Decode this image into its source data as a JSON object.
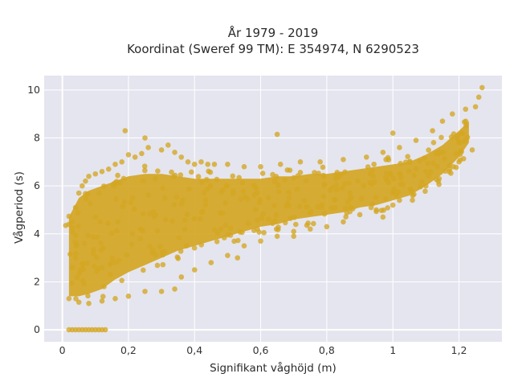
{
  "chart_data": {
    "type": "scatter",
    "title_lines": [
      "År 1979 - 2019",
      "Koordinat (Sweref 99 TM): E 354974, N 6290523"
    ],
    "xlabel": "Signifikant våghöjd (m)",
    "ylabel": "Vågperiod (s)",
    "xlim": [
      -0.055,
      1.33
    ],
    "ylim": [
      -0.5,
      10.6
    ],
    "x_ticks": [
      0,
      0.2,
      0.4,
      0.6,
      0.8,
      1.0,
      1.2
    ],
    "x_tick_labels": [
      "0",
      "0,2",
      "0,4",
      "0,6",
      "0,8",
      "1",
      "1,2"
    ],
    "y_ticks": [
      0,
      2,
      4,
      6,
      8,
      10
    ],
    "y_tick_labels": [
      "0",
      "2",
      "4",
      "6",
      "8",
      "10"
    ],
    "grid": true,
    "legend": "none",
    "colors": {
      "background": "#e5e5ef",
      "grid": "#ffffff",
      "marker": "#d4a623"
    },
    "points": [
      [
        0.02,
        0
      ],
      [
        0.03,
        0
      ],
      [
        0.04,
        0
      ],
      [
        0.05,
        0
      ],
      [
        0.06,
        0
      ],
      [
        0.07,
        0
      ],
      [
        0.08,
        0
      ],
      [
        0.09,
        0
      ],
      [
        0.1,
        0
      ],
      [
        0.11,
        0
      ],
      [
        0.12,
        0
      ],
      [
        0.13,
        0
      ],
      [
        0.01,
        4.35
      ],
      [
        0.02,
        4.4
      ],
      [
        0.03,
        4.5
      ],
      [
        0.04,
        5.1
      ],
      [
        0.05,
        5.7
      ],
      [
        0.06,
        6.0
      ],
      [
        0.07,
        6.2
      ],
      [
        0.08,
        6.4
      ],
      [
        0.1,
        6.5
      ],
      [
        0.12,
        6.6
      ],
      [
        0.14,
        6.7
      ],
      [
        0.16,
        6.9
      ],
      [
        0.18,
        7.0
      ],
      [
        0.19,
        8.3
      ],
      [
        0.2,
        7.3
      ],
      [
        0.22,
        7.2
      ],
      [
        0.24,
        7.35
      ],
      [
        0.26,
        7.6
      ],
      [
        0.25,
        8.0
      ],
      [
        0.3,
        7.5
      ],
      [
        0.32,
        7.7
      ],
      [
        0.34,
        7.4
      ],
      [
        0.36,
        7.2
      ],
      [
        0.38,
        7.0
      ],
      [
        0.4,
        6.9
      ],
      [
        0.42,
        7.0
      ],
      [
        0.44,
        6.9
      ],
      [
        0.46,
        6.9
      ],
      [
        0.5,
        6.9
      ],
      [
        0.55,
        6.8
      ],
      [
        0.6,
        6.8
      ],
      [
        0.65,
        8.15
      ],
      [
        0.66,
        6.9
      ],
      [
        0.72,
        7.0
      ],
      [
        0.78,
        7.0
      ],
      [
        0.85,
        7.1
      ],
      [
        0.92,
        7.2
      ],
      [
        0.97,
        7.4
      ],
      [
        1.0,
        8.2
      ],
      [
        1.02,
        7.6
      ],
      [
        1.07,
        7.9
      ],
      [
        1.12,
        8.3
      ],
      [
        1.15,
        8.7
      ],
      [
        1.18,
        9.0
      ],
      [
        1.22,
        9.2
      ],
      [
        1.25,
        9.3
      ],
      [
        1.26,
        9.7
      ],
      [
        1.27,
        10.1
      ],
      [
        0.02,
        1.3
      ],
      [
        0.05,
        1.15
      ],
      [
        0.08,
        1.1
      ],
      [
        0.12,
        1.2
      ],
      [
        0.16,
        1.3
      ],
      [
        0.2,
        1.4
      ],
      [
        0.25,
        1.6
      ],
      [
        0.3,
        1.6
      ],
      [
        0.34,
        1.7
      ],
      [
        0.4,
        2.5
      ],
      [
        0.45,
        2.8
      ],
      [
        0.5,
        3.1
      ],
      [
        0.55,
        3.5
      ],
      [
        0.6,
        3.7
      ],
      [
        0.65,
        3.9
      ],
      [
        0.7,
        4.1
      ],
      [
        0.75,
        4.2
      ],
      [
        0.8,
        4.3
      ],
      [
        0.85,
        4.5
      ],
      [
        0.9,
        4.8
      ],
      [
        0.95,
        5.0
      ],
      [
        1.0,
        5.2
      ],
      [
        1.02,
        5.4
      ],
      [
        1.06,
        5.6
      ],
      [
        1.1,
        6.0
      ],
      [
        1.14,
        6.3
      ],
      [
        1.17,
        6.6
      ],
      [
        1.2,
        7.0
      ],
      [
        1.24,
        7.5
      ],
      [
        0.97,
        4.7
      ],
      [
        0.7,
        3.9
      ],
      [
        0.53,
        3.0
      ],
      [
        0.36,
        2.2
      ],
      [
        0.03,
        2.6
      ],
      [
        0.04,
        3.0
      ]
    ],
    "density_bands": [
      {
        "name": "dense-core",
        "x": [
          0.02,
          0.05,
          0.08,
          0.12,
          0.16,
          0.2,
          0.25,
          0.3,
          0.35,
          0.4,
          0.45,
          0.5,
          0.55,
          0.6,
          0.65,
          0.7,
          0.75,
          0.8,
          0.85,
          0.9,
          0.95,
          1.0,
          1.05,
          1.1,
          1.15,
          1.2,
          1.23
        ],
        "lower": [
          1.4,
          1.4,
          1.5,
          1.7,
          2.1,
          2.4,
          2.7,
          3.0,
          3.3,
          3.5,
          3.7,
          3.9,
          4.1,
          4.3,
          4.4,
          4.6,
          4.7,
          4.8,
          4.9,
          5.1,
          5.2,
          5.4,
          5.6,
          6.0,
          6.5,
          7.2,
          7.8
        ],
        "upper": [
          4.7,
          5.5,
          5.8,
          6.0,
          6.2,
          6.4,
          6.5,
          6.5,
          6.4,
          6.3,
          6.3,
          6.3,
          6.3,
          6.3,
          6.4,
          6.4,
          6.5,
          6.5,
          6.6,
          6.7,
          6.8,
          6.9,
          7.0,
          7.3,
          7.7,
          8.3,
          8.7
        ]
      }
    ]
  }
}
